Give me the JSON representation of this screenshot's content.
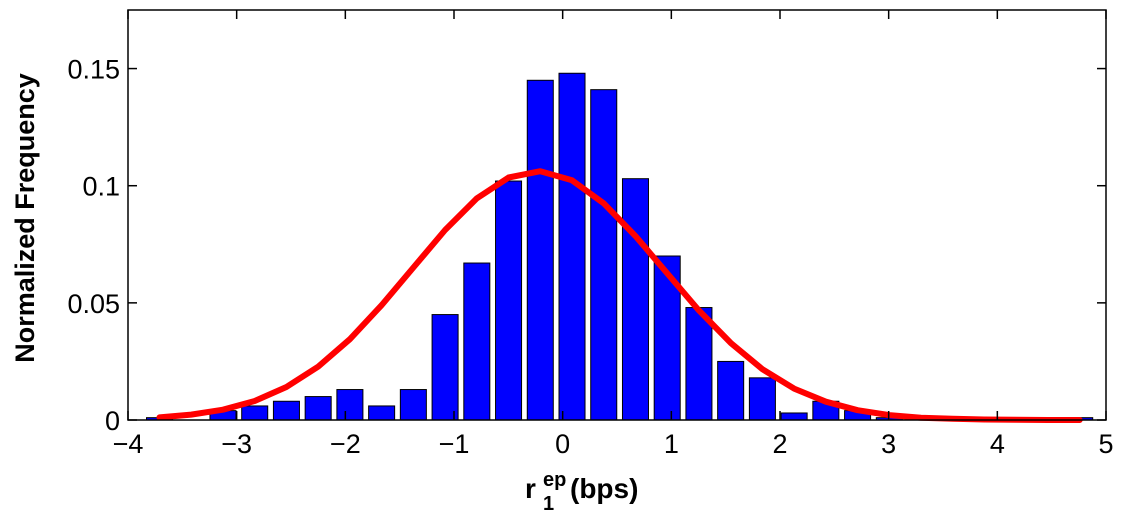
{
  "chart_data": {
    "type": "bar",
    "xlabel": {
      "base": "r",
      "subscript": "1",
      "superscript": "ep",
      "suffix": " (bps)"
    },
    "ylabel": "Normalized Frequency",
    "xlim": [
      -4,
      5
    ],
    "ylim": [
      0,
      0.175
    ],
    "xticks": [
      -4,
      -3,
      -2,
      -1,
      0,
      1,
      2,
      3,
      4,
      5
    ],
    "xtick_labels": [
      "−4",
      "−3",
      "−2",
      "−1",
      "0",
      "1",
      "2",
      "3",
      "4",
      "5"
    ],
    "yticks": [
      0,
      0.05,
      0.1,
      0.15
    ],
    "ytick_labels": [
      "0",
      "0.05",
      "0.1",
      "0.15"
    ],
    "bar_color": "#0000ff",
    "curve_color": "#ff0000",
    "bin_width": 0.292,
    "x": [
      -3.71,
      -3.418,
      -3.126,
      -2.834,
      -2.542,
      -2.25,
      -1.958,
      -1.666,
      -1.374,
      -1.082,
      -0.79,
      -0.498,
      -0.206,
      0.086,
      0.378,
      0.67,
      0.962,
      1.254,
      1.546,
      1.838,
      2.13,
      2.422,
      2.714,
      3.006,
      3.298,
      3.59,
      3.882,
      4.174,
      4.466,
      4.758
    ],
    "values": [
      0.001,
      0.0,
      0.004,
      0.006,
      0.008,
      0.01,
      0.013,
      0.006,
      0.013,
      0.045,
      0.067,
      0.102,
      0.145,
      0.148,
      0.141,
      0.103,
      0.07,
      0.048,
      0.025,
      0.018,
      0.003,
      0.008,
      0.004,
      0.001,
      0.0,
      0.0,
      0.0,
      0.001,
      0.0,
      0.001
    ],
    "series": [
      {
        "type": "line",
        "x": [
          -3.71,
          -3.418,
          -3.126,
          -2.834,
          -2.542,
          -2.25,
          -1.958,
          -1.666,
          -1.374,
          -1.082,
          -0.79,
          -0.498,
          -0.206,
          0.086,
          0.378,
          0.67,
          0.962,
          1.254,
          1.546,
          1.838,
          2.13,
          2.422,
          2.714,
          3.006,
          3.298,
          3.59,
          3.882,
          4.174,
          4.466,
          4.758
        ],
        "values": [
          0.0011,
          0.0023,
          0.0044,
          0.0081,
          0.0141,
          0.0228,
          0.0345,
          0.049,
          0.0651,
          0.0811,
          0.0946,
          0.1035,
          0.1062,
          0.1023,
          0.0925,
          0.0785,
          0.0626,
          0.0468,
          0.0329,
          0.0217,
          0.0134,
          0.0078,
          0.0042,
          0.0021,
          0.001,
          0.0005,
          0.0002,
          0.0001,
          0.0,
          0.0
        ]
      }
    ]
  }
}
